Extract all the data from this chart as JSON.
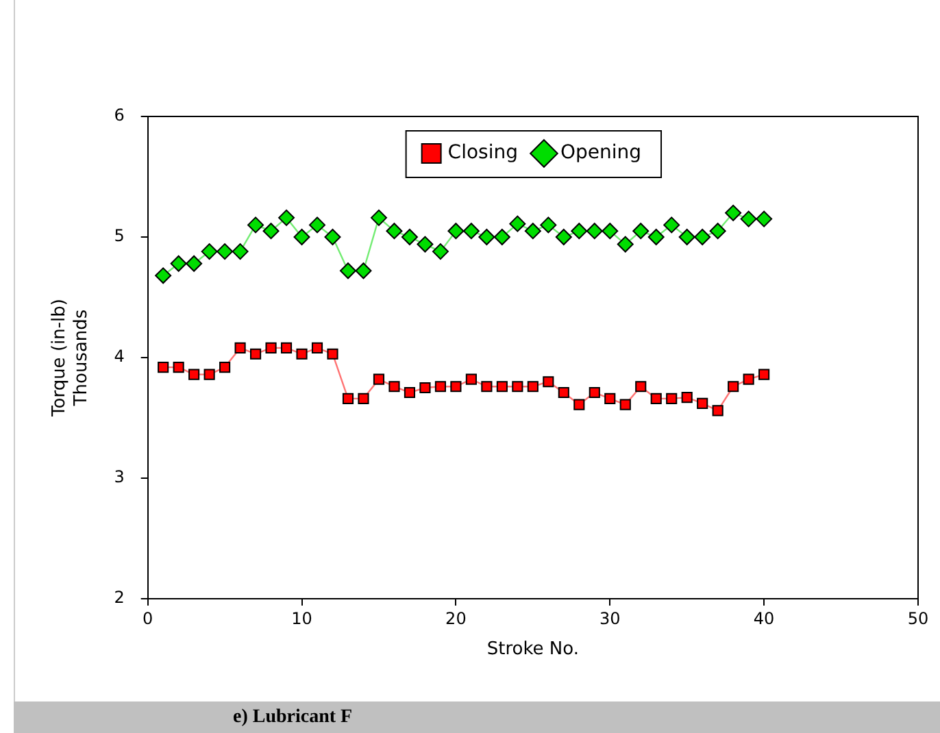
{
  "chart_data": {
    "type": "line",
    "xlabel": "Stroke No.",
    "ylabel": "Torque (in-lb)\nThousands",
    "x": [
      1,
      2,
      3,
      4,
      5,
      6,
      7,
      8,
      9,
      10,
      11,
      12,
      13,
      14,
      15,
      16,
      17,
      18,
      19,
      20,
      21,
      22,
      23,
      24,
      25,
      26,
      27,
      28,
      29,
      30,
      31,
      32,
      33,
      34,
      35,
      36,
      37,
      38,
      39,
      40
    ],
    "series": [
      {
        "name": "Closing",
        "color": "#ff0000",
        "marker": "square",
        "values": [
          3.92,
          3.92,
          3.86,
          3.86,
          3.92,
          4.08,
          4.03,
          4.08,
          4.08,
          4.03,
          4.08,
          4.03,
          3.66,
          3.66,
          3.82,
          3.76,
          3.71,
          3.75,
          3.76,
          3.76,
          3.82,
          3.76,
          3.76,
          3.76,
          3.76,
          3.8,
          3.71,
          3.61,
          3.71,
          3.66,
          3.61,
          3.76,
          3.66,
          3.66,
          3.67,
          3.62,
          3.56,
          3.76,
          3.82,
          3.86
        ]
      },
      {
        "name": "Opening",
        "color": "#00dd00",
        "marker": "diamond",
        "values": [
          4.68,
          4.78,
          4.78,
          4.88,
          4.88,
          4.88,
          5.1,
          5.05,
          5.16,
          5.0,
          5.1,
          5.0,
          4.72,
          4.72,
          5.16,
          5.05,
          5.0,
          4.94,
          4.88,
          5.05,
          5.05,
          5.0,
          5.0,
          5.11,
          5.05,
          5.1,
          5.0,
          5.05,
          5.05,
          5.05,
          4.94,
          5.05,
          5.0,
          5.1,
          5.0,
          5.0,
          5.05,
          5.2,
          5.15,
          5.15
        ]
      }
    ],
    "xlim": [
      0,
      50
    ],
    "xticks": [
      0,
      10,
      20,
      30,
      40,
      50
    ],
    "ylim": [
      2,
      6
    ],
    "yticks": [
      2,
      3,
      4,
      5,
      6
    ],
    "grid": false,
    "legend": "top",
    "line_style": "solid",
    "annotations": [
      "e) Lubricant F"
    ]
  }
}
